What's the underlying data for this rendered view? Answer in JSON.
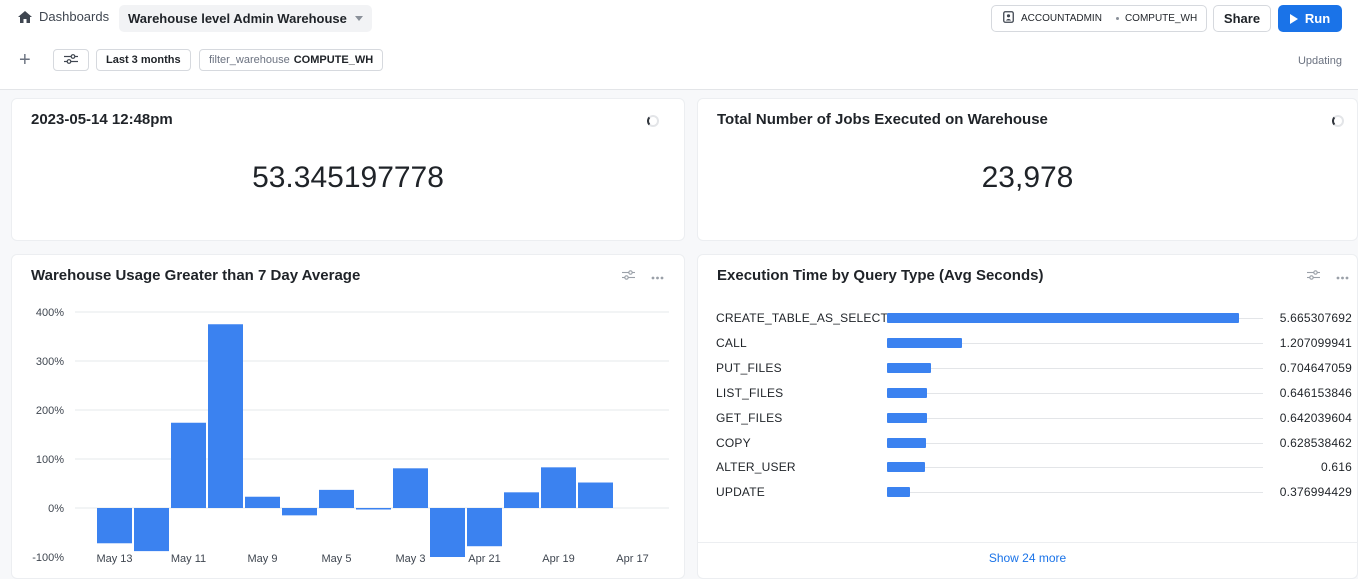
{
  "header": {
    "breadcrumb": "Dashboards",
    "dashboard_name": "Warehouse level Admin Warehouse",
    "role": "ACCOUNTADMIN",
    "warehouse": "COMPUTE_WH",
    "share_label": "Share",
    "run_label": "Run"
  },
  "filters": {
    "add_icon": "+",
    "range_label": "Last 3 months",
    "warehouse_filter_key": "filter_warehouse",
    "warehouse_filter_value": "COMPUTE_WH",
    "status": "Updating"
  },
  "tiles": {
    "timestamp_tile": {
      "title": "2023-05-14 12:48pm",
      "value": "53.345197778"
    },
    "jobs_tile": {
      "title": "Total Number of Jobs Executed on Warehouse",
      "value": "23,978"
    },
    "usage_tile": {
      "title": "Warehouse Usage Greater than 7 Day Average"
    },
    "exec_tile": {
      "title": "Execution Time by Query Type (Avg Seconds)",
      "rows": [
        {
          "label": "CREATE_TABLE_AS_SELECT",
          "value": "5.665307692",
          "num": 5.665307692
        },
        {
          "label": "CALL",
          "value": "1.207099941",
          "num": 1.207099941
        },
        {
          "label": "PUT_FILES",
          "value": "0.704647059",
          "num": 0.704647059
        },
        {
          "label": "LIST_FILES",
          "value": "0.646153846",
          "num": 0.646153846
        },
        {
          "label": "GET_FILES",
          "value": "0.642039604",
          "num": 0.642039604
        },
        {
          "label": "COPY",
          "value": "0.628538462",
          "num": 0.628538462
        },
        {
          "label": "ALTER_USER",
          "value": "0.616",
          "num": 0.616
        },
        {
          "label": "UPDATE",
          "value": "0.376994429",
          "num": 0.376994429
        }
      ],
      "show_more": "Show 24 more"
    }
  },
  "colors": {
    "accent": "#1a73e8",
    "bar": "#3b82f0"
  },
  "chart_data": {
    "type": "bar",
    "title": "Warehouse Usage Greater than 7 Day Average",
    "yticks": [
      "400%",
      "300%",
      "200%",
      "100%",
      "0%",
      "-100%"
    ],
    "ylim": [
      -100,
      400
    ],
    "xticks": [
      "May 13",
      "May 11",
      "May 9",
      "May 5",
      "May 3",
      "Apr 21",
      "Apr 19",
      "Apr 17"
    ],
    "values": [
      -72,
      -88,
      174,
      375,
      23,
      -15,
      37,
      -2,
      81,
      -100,
      -78,
      32,
      83,
      52
    ],
    "grid": true
  }
}
